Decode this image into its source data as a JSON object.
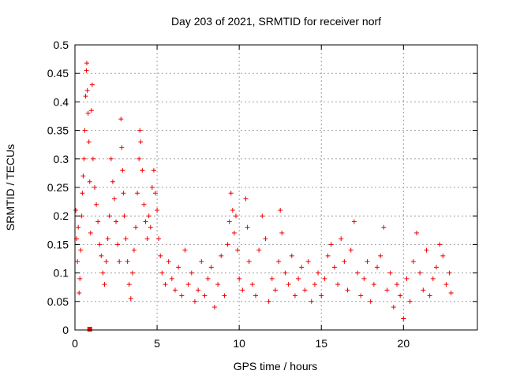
{
  "chart_data": {
    "type": "scatter",
    "title": "Day 203 of 2021, SRMTID for receiver norf",
    "xlabel": "GPS time / hours",
    "ylabel": "SRMTID / TECUs",
    "xlim": [
      0,
      24.5
    ],
    "ylim": [
      0,
      0.5
    ],
    "xticks": [
      0,
      5,
      10,
      15,
      20
    ],
    "xtick_labels": [
      "0",
      "5",
      "10",
      "15",
      "20"
    ],
    "yticks": [
      0,
      0.05,
      0.1,
      0.15,
      0.2,
      0.25,
      0.3,
      0.35,
      0.4,
      0.45,
      0.5
    ],
    "ytick_labels": [
      "0",
      "0.05",
      "0.1",
      "0.15",
      "0.2",
      "0.25",
      "0.3",
      "0.35",
      "0.4",
      "0.45",
      "0.5"
    ],
    "grid": true,
    "marker": "+",
    "color": "#ee0000",
    "series": [
      {
        "name": "SRMTID",
        "points": [
          [
            0.05,
            0.21
          ],
          [
            0.1,
            0.16
          ],
          [
            0.15,
            0.12
          ],
          [
            0.2,
            0.18
          ],
          [
            0.25,
            0.065
          ],
          [
            0.3,
            0.09
          ],
          [
            0.35,
            0.14
          ],
          [
            0.4,
            0.2
          ],
          [
            0.45,
            0.24
          ],
          [
            0.5,
            0.27
          ],
          [
            0.55,
            0.3
          ],
          [
            0.6,
            0.35
          ],
          [
            0.65,
            0.41
          ],
          [
            0.7,
            0.455
          ],
          [
            0.72,
            0.468
          ],
          [
            0.75,
            0.42
          ],
          [
            0.8,
            0.38
          ],
          [
            0.85,
            0.33
          ],
          [
            0.9,
            0.26
          ],
          [
            0.95,
            0.17
          ],
          [
            1.0,
            0.385
          ],
          [
            1.05,
            0.43
          ],
          [
            1.1,
            0.3
          ],
          [
            1.2,
            0.25
          ],
          [
            1.3,
            0.22
          ],
          [
            1.4,
            0.19
          ],
          [
            1.5,
            0.15
          ],
          [
            1.6,
            0.13
          ],
          [
            1.7,
            0.1
          ],
          [
            1.8,
            0.08
          ],
          [
            1.9,
            0.12
          ],
          [
            2.0,
            0.16
          ],
          [
            2.1,
            0.2
          ],
          [
            2.2,
            0.3
          ],
          [
            2.3,
            0.26
          ],
          [
            2.4,
            0.23
          ],
          [
            2.5,
            0.19
          ],
          [
            2.6,
            0.15
          ],
          [
            2.7,
            0.12
          ],
          [
            2.8,
            0.37
          ],
          [
            2.85,
            0.32
          ],
          [
            2.9,
            0.28
          ],
          [
            2.95,
            0.24
          ],
          [
            3.0,
            0.2
          ],
          [
            3.1,
            0.16
          ],
          [
            3.2,
            0.12
          ],
          [
            3.3,
            0.08
          ],
          [
            3.4,
            0.055
          ],
          [
            3.5,
            0.1
          ],
          [
            3.6,
            0.14
          ],
          [
            3.7,
            0.18
          ],
          [
            3.8,
            0.24
          ],
          [
            3.9,
            0.3
          ],
          [
            3.95,
            0.35
          ],
          [
            4.0,
            0.33
          ],
          [
            4.1,
            0.28
          ],
          [
            4.2,
            0.22
          ],
          [
            4.3,
            0.19
          ],
          [
            4.4,
            0.16
          ],
          [
            4.5,
            0.2
          ],
          [
            4.6,
            0.18
          ],
          [
            4.7,
            0.25
          ],
          [
            4.8,
            0.28
          ],
          [
            4.9,
            0.24
          ],
          [
            5.0,
            0.21
          ],
          [
            5.1,
            0.16
          ],
          [
            5.2,
            0.13
          ],
          [
            5.3,
            0.1
          ],
          [
            5.5,
            0.08
          ],
          [
            5.7,
            0.12
          ],
          [
            5.9,
            0.09
          ],
          [
            6.1,
            0.07
          ],
          [
            6.3,
            0.11
          ],
          [
            6.5,
            0.06
          ],
          [
            6.7,
            0.14
          ],
          [
            6.9,
            0.08
          ],
          [
            7.1,
            0.1
          ],
          [
            7.3,
            0.05
          ],
          [
            7.5,
            0.07
          ],
          [
            7.7,
            0.12
          ],
          [
            7.9,
            0.06
          ],
          [
            8.1,
            0.09
          ],
          [
            8.3,
            0.11
          ],
          [
            8.5,
            0.04
          ],
          [
            8.7,
            0.08
          ],
          [
            8.9,
            0.13
          ],
          [
            9.1,
            0.06
          ],
          [
            9.3,
            0.15
          ],
          [
            9.4,
            0.19
          ],
          [
            9.5,
            0.24
          ],
          [
            9.6,
            0.21
          ],
          [
            9.7,
            0.17
          ],
          [
            9.8,
            0.2
          ],
          [
            9.9,
            0.14
          ],
          [
            10.0,
            0.09
          ],
          [
            10.2,
            0.07
          ],
          [
            10.4,
            0.23
          ],
          [
            10.5,
            0.18
          ],
          [
            10.6,
            0.12
          ],
          [
            10.8,
            0.08
          ],
          [
            11.0,
            0.06
          ],
          [
            11.2,
            0.14
          ],
          [
            11.4,
            0.2
          ],
          [
            11.6,
            0.16
          ],
          [
            11.8,
            0.05
          ],
          [
            12.0,
            0.09
          ],
          [
            12.2,
            0.07
          ],
          [
            12.4,
            0.12
          ],
          [
            12.5,
            0.21
          ],
          [
            12.6,
            0.17
          ],
          [
            12.8,
            0.1
          ],
          [
            13.0,
            0.08
          ],
          [
            13.2,
            0.13
          ],
          [
            13.4,
            0.06
          ],
          [
            13.6,
            0.09
          ],
          [
            13.8,
            0.11
          ],
          [
            14.0,
            0.07
          ],
          [
            14.2,
            0.12
          ],
          [
            14.4,
            0.05
          ],
          [
            14.6,
            0.08
          ],
          [
            14.8,
            0.1
          ],
          [
            15.0,
            0.06
          ],
          [
            15.2,
            0.09
          ],
          [
            15.4,
            0.13
          ],
          [
            15.6,
            0.15
          ],
          [
            15.8,
            0.11
          ],
          [
            16.0,
            0.08
          ],
          [
            16.2,
            0.16
          ],
          [
            16.4,
            0.12
          ],
          [
            16.6,
            0.07
          ],
          [
            16.8,
            0.14
          ],
          [
            17.0,
            0.19
          ],
          [
            17.2,
            0.1
          ],
          [
            17.4,
            0.06
          ],
          [
            17.6,
            0.09
          ],
          [
            17.8,
            0.12
          ],
          [
            18.0,
            0.05
          ],
          [
            18.2,
            0.08
          ],
          [
            18.4,
            0.11
          ],
          [
            18.6,
            0.13
          ],
          [
            18.8,
            0.18
          ],
          [
            19.0,
            0.07
          ],
          [
            19.2,
            0.1
          ],
          [
            19.4,
            0.04
          ],
          [
            19.6,
            0.08
          ],
          [
            19.8,
            0.06
          ],
          [
            20.0,
            0.02
          ],
          [
            20.2,
            0.09
          ],
          [
            20.4,
            0.05
          ],
          [
            20.6,
            0.12
          ],
          [
            20.8,
            0.17
          ],
          [
            21.0,
            0.1
          ],
          [
            21.2,
            0.07
          ],
          [
            21.4,
            0.14
          ],
          [
            21.6,
            0.06
          ],
          [
            21.8,
            0.09
          ],
          [
            22.0,
            0.11
          ],
          [
            22.2,
            0.15
          ],
          [
            22.4,
            0.13
          ],
          [
            22.6,
            0.08
          ],
          [
            22.8,
            0.1
          ],
          [
            22.9,
            0.065
          ]
        ]
      }
    ],
    "ground_marker": {
      "x": 0.9,
      "y": 0.0
    }
  }
}
